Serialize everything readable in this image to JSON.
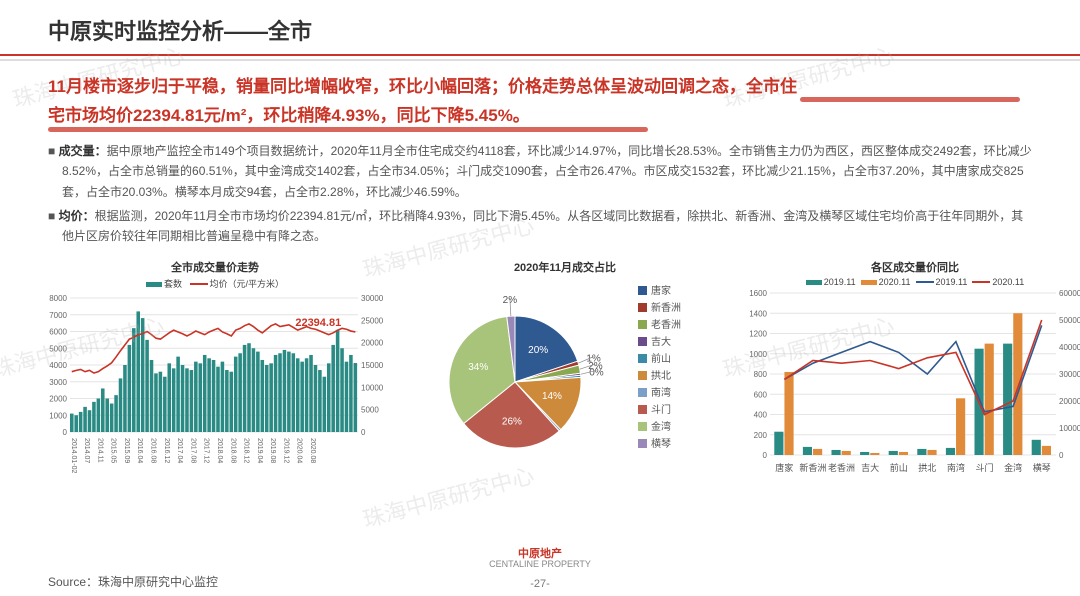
{
  "page": {
    "title": "中原实时监控分析——全市",
    "highlight_line1": "11月楼市逐步归于平稳，销量同比增幅收窄，环比小幅回落；价格走势总体呈波动回调之态，全市住",
    "highlight_line2": "宅市场均价22394.81元/m²，环比稍降4.93%，同比下降5.45%。",
    "bullet1_label": "成交量：",
    "bullet1_text": "据中原地产监控全市149个项目数据统计，2020年11月全市住宅成交约4118套，环比减少14.97%，同比增长28.53%。全市销售主力仍为西区，西区整体成交2492套，环比减少8.52%，占全市总销量的60.51%，其中金湾成交1402套，占全市34.05%；斗门成交1090套，占全市26.47%。市区成交1532套，环比减少21.15%，占全市37.20%，其中唐家成交825套，占全市20.03%。横琴本月成交94套，占全市2.28%，环比减少46.59%。",
    "bullet2_label": "均价：",
    "bullet2_text": "根据监测，2020年11月全市市场均价22394.81元/㎡，环比稍降4.93%，同比下滑5.45%。从各区域同比数据看，除拱北、新香洲、金湾及横琴区域住宅均价高于往年同期外，其他片区房价较往年同期相比普遍呈稳中有降之态。",
    "source": "Source：珠海中原研究中心监控",
    "page_number": "-27-",
    "brand": "中原地产",
    "brand_en": "CENTALINE PROPERTY"
  },
  "watermark_text": "珠海中原研究中心",
  "chart1": {
    "title": "全市成交量价走势",
    "legend_bar": "套数",
    "legend_line": "均价（元/平方米）",
    "bar_color": "#2a8a84",
    "line_color": "#c93426",
    "callout": "22394.81",
    "y_left": {
      "min": 0,
      "max": 8000,
      "step": 1000
    },
    "y_right": {
      "min": 0,
      "max": 30000,
      "step": 5000
    },
    "x_labels": [
      "2014.01-02",
      "2014.07",
      "2014.11",
      "2015.05",
      "2015.09",
      "2016.04",
      "2016.08",
      "2016.12",
      "2017.04",
      "2017.08",
      "2017.12",
      "2018.04",
      "2018.08",
      "2018.12",
      "2019.04",
      "2019.08",
      "2019.12",
      "2020.04",
      "2020.08"
    ],
    "bars": [
      1100,
      1000,
      1200,
      1500,
      1300,
      1800,
      2000,
      2600,
      2000,
      1700,
      2200,
      3200,
      4000,
      5200,
      6200,
      7200,
      6800,
      5500,
      4300,
      3500,
      3600,
      3300,
      4100,
      3800,
      4500,
      4000,
      3800,
      3700,
      4200,
      4100,
      4600,
      4400,
      4300,
      3900,
      4200,
      3700,
      3600,
      4500,
      4700,
      5200,
      5300,
      5000,
      4800,
      4300,
      4000,
      4100,
      4600,
      4700,
      4900,
      4800,
      4700,
      4400,
      4200,
      4400,
      4600,
      4000,
      3700,
      3300,
      4100,
      5200,
      6100,
      5000,
      4200,
      4600,
      4118
    ],
    "line": [
      13500,
      13800,
      14000,
      13500,
      13800,
      13200,
      13500,
      14200,
      14800,
      15500,
      16800,
      18200,
      19500,
      20800,
      21200,
      21800,
      22000,
      22500,
      21800,
      21000,
      20800,
      21500,
      22200,
      22800,
      22400,
      22000,
      21500,
      22000,
      22600,
      22200,
      21800,
      22400,
      22800,
      23200,
      22400,
      22000,
      21500,
      22800,
      23200,
      23800,
      24200,
      23600,
      22800,
      22200,
      23000,
      23800,
      24200,
      23600,
      23800,
      24000,
      23400,
      22800,
      23200,
      23600,
      23200,
      23000,
      22600,
      22200,
      21800,
      22200,
      22800,
      23200,
      23000,
      22600,
      22395
    ]
  },
  "chart2": {
    "title": "2020年11月成交占比",
    "slices": [
      {
        "label": "唐家",
        "value": 20,
        "color": "#2f5a91",
        "show_pct": true
      },
      {
        "label": "新香洲",
        "value": 1,
        "color": "#a03a2c",
        "show_pct": true
      },
      {
        "label": "老香洲",
        "value": 2,
        "color": "#8aa84e",
        "show_pct": true
      },
      {
        "label": "吉大",
        "value": 0.5,
        "color": "#6a4c8a",
        "show_pct": true,
        "zero": true
      },
      {
        "label": "前山",
        "value": 0.5,
        "color": "#3a8aa8",
        "show_pct": false
      },
      {
        "label": "拱北",
        "value": 14,
        "color": "#cc8a3a",
        "show_pct": true
      },
      {
        "label": "南湾",
        "value": 0.5,
        "color": "#7aa0c8",
        "show_pct": false
      },
      {
        "label": "斗门",
        "value": 26,
        "color": "#b85a4e",
        "show_pct": true
      },
      {
        "label": "金湾",
        "value": 34,
        "color": "#a8c47a",
        "show_pct": true
      },
      {
        "label": "横琴",
        "value": 2,
        "color": "#9a88b8",
        "show_pct": true
      }
    ]
  },
  "chart3": {
    "title": "各区成交量价同比",
    "categories": [
      "唐家",
      "新香洲",
      "老香洲",
      "吉大",
      "前山",
      "拱北",
      "南湾",
      "斗门",
      "金湾",
      "横琴"
    ],
    "bar1": {
      "label": "2019.11",
      "color": "#2a8a84",
      "values": [
        230,
        80,
        50,
        30,
        40,
        60,
        70,
        1050,
        1100,
        150
      ]
    },
    "bar2": {
      "label": "2020.11",
      "color": "#e08a3a",
      "values": [
        820,
        60,
        40,
        20,
        30,
        50,
        560,
        1100,
        1400,
        90
      ]
    },
    "line1": {
      "label": "2019.11",
      "color": "#2f5a91",
      "values": [
        28000,
        34000,
        38000,
        42000,
        38000,
        30000,
        42000,
        16000,
        18000,
        48000
      ]
    },
    "line2": {
      "label": "2020.11",
      "color": "#c93426",
      "values": [
        28000,
        35000,
        34000,
        35000,
        32000,
        36000,
        38000,
        15000,
        20000,
        50000
      ]
    },
    "y_left": {
      "min": 0,
      "max": 1600,
      "step": 200
    },
    "y_right": {
      "min": 0,
      "max": 60000,
      "step": 10000
    }
  },
  "colors": {
    "red": "#c93426",
    "teal": "#2a8a84",
    "grid": "#e4e4e4"
  }
}
